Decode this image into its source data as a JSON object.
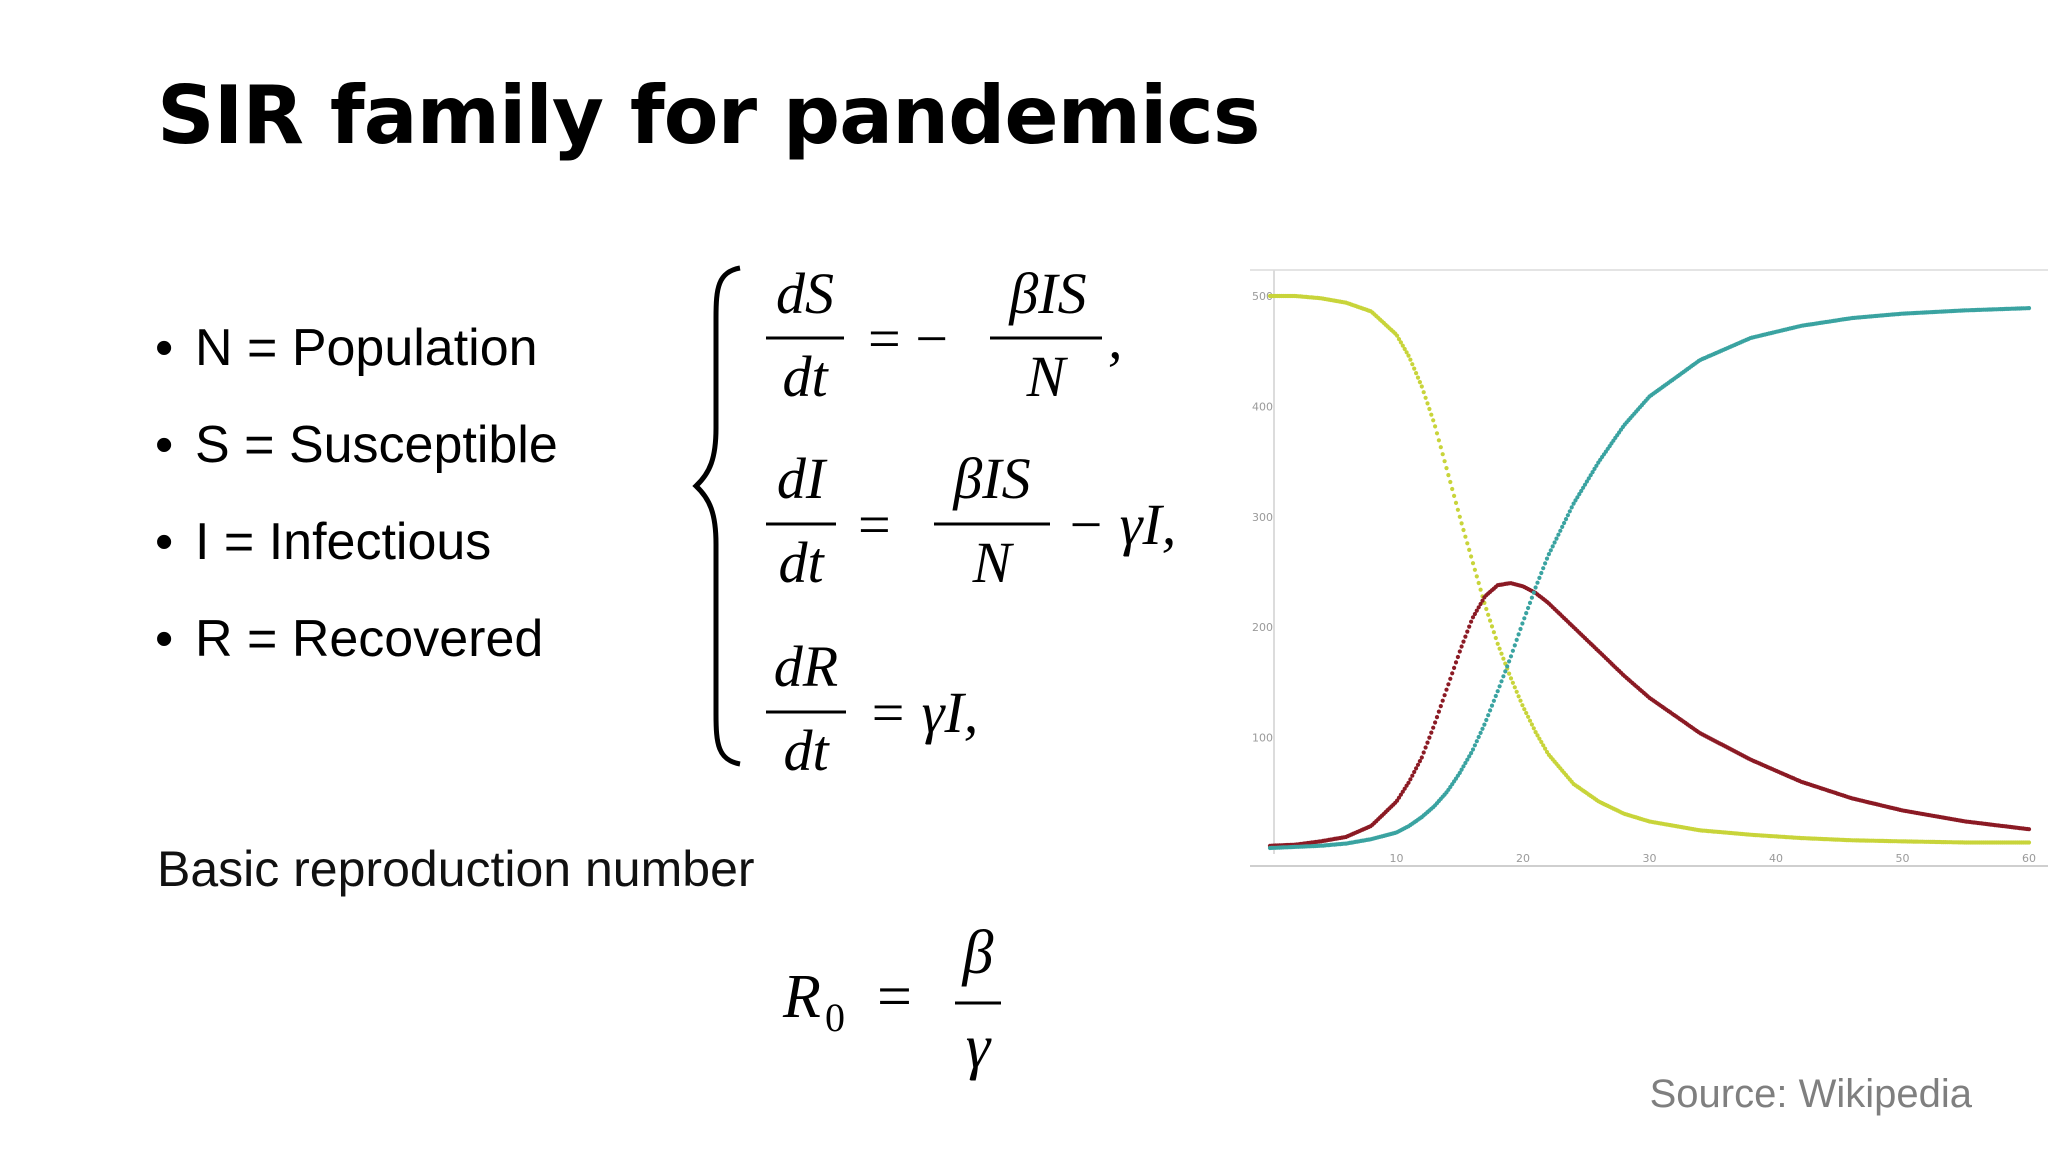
{
  "slide": {
    "title": "SIR family for pandemics",
    "bullets": [
      "N = Population",
      "S = Susceptible",
      "I = Infectious",
      "R = Recovered"
    ],
    "basic_reproduction_label": "Basic reproduction number",
    "source": "Source: Wikipedia"
  },
  "equations": {
    "dS": {
      "num": "dS",
      "den": "dt",
      "sign": "= −",
      "rhs_num": "βIS",
      "rhs_den": "N",
      "tail": ","
    },
    "dI": {
      "num": "dI",
      "den": "dt",
      "sign": "=",
      "rhs_num": "βIS",
      "rhs_den": "N",
      "tail": "− γI,"
    },
    "dR": {
      "num": "dR",
      "den": "dt",
      "rhs": "= γI,"
    },
    "r0": {
      "lhs": "R",
      "sub": "0",
      "eq": "=",
      "num": "β",
      "den": "γ"
    }
  },
  "chart_data": {
    "type": "scatter",
    "x_ticks": [
      10,
      20,
      30,
      40,
      50,
      60
    ],
    "y_ticks": [
      100,
      200,
      300,
      400,
      500
    ],
    "xlim": [
      0,
      60
    ],
    "ylim": [
      0,
      500
    ],
    "grid": false,
    "series": [
      {
        "color": "#c8d43a",
        "x": [
          0,
          2,
          4,
          6,
          8,
          10,
          11,
          12,
          13,
          14,
          15,
          16,
          17,
          18,
          19,
          20,
          21,
          22,
          24,
          26,
          28,
          30,
          34,
          38,
          42,
          46,
          50,
          55,
          60
        ],
        "values": [
          500,
          500,
          498,
          494,
          486,
          465,
          445,
          418,
          384,
          342,
          300,
          260,
          220,
          185,
          155,
          128,
          105,
          85,
          58,
          42,
          31,
          24,
          16,
          12,
          9,
          7,
          6,
          5,
          5
        ]
      },
      {
        "color": "#8b1a24",
        "x": [
          0,
          2,
          4,
          6,
          8,
          10,
          11,
          12,
          13,
          14,
          15,
          16,
          17,
          18,
          19,
          20,
          21,
          22,
          24,
          26,
          28,
          30,
          34,
          38,
          42,
          46,
          50,
          55,
          60
        ],
        "values": [
          2,
          3,
          6,
          10,
          20,
          42,
          60,
          82,
          112,
          145,
          178,
          208,
          228,
          238,
          240,
          237,
          231,
          222,
          200,
          178,
          156,
          136,
          104,
          80,
          60,
          45,
          34,
          24,
          17
        ]
      },
      {
        "color": "#3aa3a1",
        "x": [
          0,
          2,
          4,
          6,
          8,
          10,
          11,
          12,
          13,
          14,
          15,
          16,
          17,
          18,
          19,
          20,
          21,
          22,
          24,
          26,
          28,
          30,
          34,
          38,
          42,
          46,
          50,
          55,
          60
        ],
        "values": [
          0,
          1,
          2,
          4,
          8,
          14,
          20,
          28,
          38,
          51,
          68,
          88,
          113,
          142,
          172,
          205,
          236,
          265,
          312,
          350,
          383,
          409,
          442,
          462,
          473,
          480,
          484,
          487,
          489
        ]
      }
    ]
  }
}
